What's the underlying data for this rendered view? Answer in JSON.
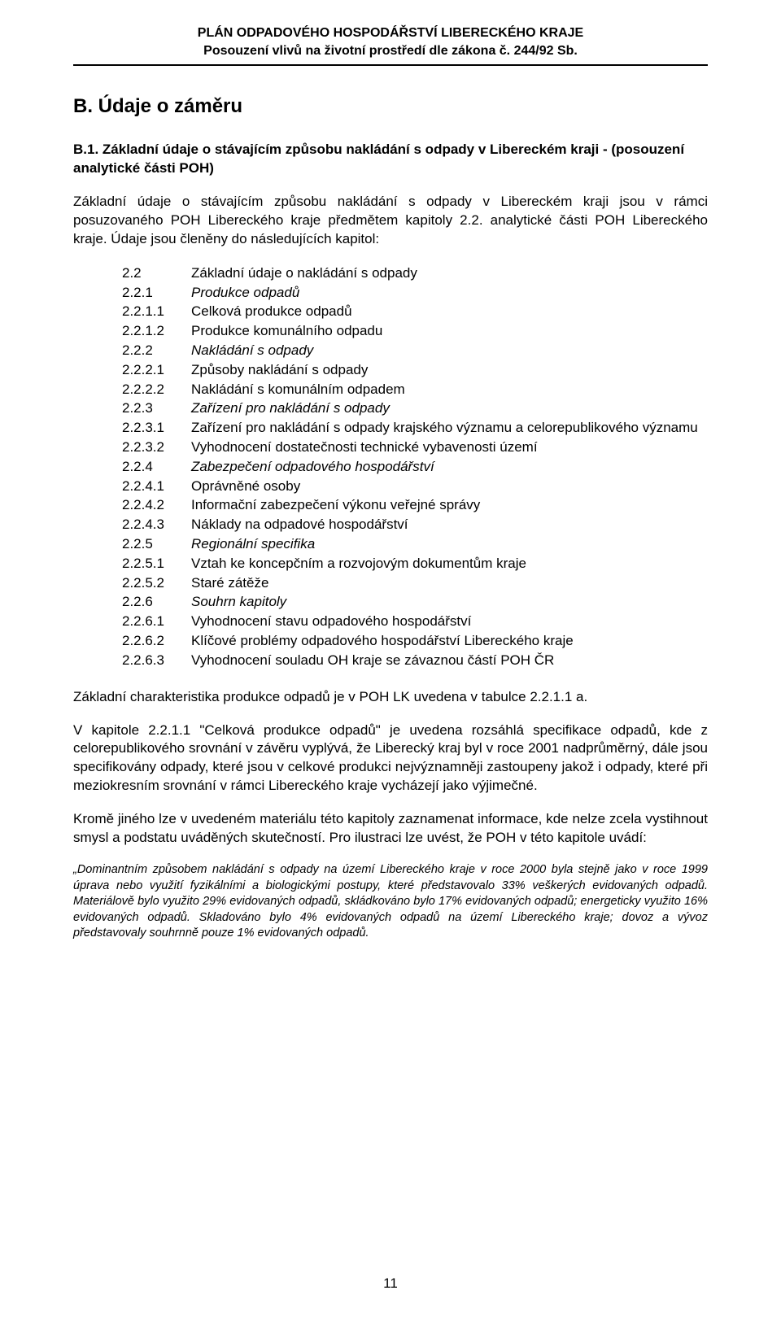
{
  "header": {
    "line1": "PLÁN ODPADOVÉHO HOSPODÁŘSTVÍ LIBERECKÉHO KRAJE",
    "line2": "Posouzení vlivů na životní prostředí dle zákona č. 244/92 Sb."
  },
  "section_title": "B. Údaje o záměru",
  "subsection_title": "B.1. Základní údaje o stávajícím způsobu nakládání s odpady v Libereckém kraji - (posouzení analytické části POH)",
  "intro_para": "Základní údaje o stávajícím způsobu nakládání s odpady v Libereckém kraji jsou v rámci posuzovaného POH Libereckého kraje předmětem kapitoly 2.2. analytické části POH Libereckého kraje. Údaje jsou členěny do následujících kapitol:",
  "toc": [
    {
      "num": "2.2",
      "label": "Základní údaje o nakládání s odpady",
      "italic": false
    },
    {
      "num": "2.2.1",
      "label": "Produkce odpadů",
      "italic": true
    },
    {
      "num": "2.2.1.1",
      "label": "Celková produkce odpadů",
      "italic": false
    },
    {
      "num": "2.2.1.2",
      "label": "Produkce komunálního odpadu",
      "italic": false
    },
    {
      "num": "2.2.2",
      "label": "Nakládání s odpady",
      "italic": true
    },
    {
      "num": "2.2.2.1",
      "label": "Způsoby nakládání s odpady",
      "italic": false
    },
    {
      "num": "2.2.2.2",
      "label": "Nakládání s komunálním odpadem",
      "italic": false
    },
    {
      "num": "2.2.3",
      "label": "Zařízení pro nakládání s odpady",
      "italic": true
    },
    {
      "num": "2.2.3.1",
      "label": "Zařízení pro nakládání s odpady krajského významu a celorepublikového významu",
      "italic": false
    },
    {
      "num": "2.2.3.2",
      "label": "Vyhodnocení dostatečnosti technické vybavenosti území",
      "italic": false
    },
    {
      "num": "2.2.4",
      "label": "Zabezpečení odpadového hospodářství",
      "italic": true
    },
    {
      "num": "2.2.4.1",
      "label": "Oprávněné osoby",
      "italic": false
    },
    {
      "num": "2.2.4.2",
      "label": "Informační zabezpečení výkonu veřejné správy",
      "italic": false
    },
    {
      "num": "2.2.4.3",
      "label": "Náklady na odpadové hospodářství",
      "italic": false
    },
    {
      "num": "2.2.5",
      "label": "Regionální specifika",
      "italic": true
    },
    {
      "num": "2.2.5.1",
      "label": "Vztah ke koncepčním a rozvojovým dokumentům kraje",
      "italic": false
    },
    {
      "num": "2.2.5.2",
      "label": "Staré zátěže",
      "italic": false
    },
    {
      "num": "2.2.6",
      "label": "Souhrn kapitoly",
      "italic": true
    },
    {
      "num": "2.2.6.1",
      "label": "Vyhodnocení stavu odpadového hospodářství",
      "italic": false
    },
    {
      "num": "2.2.6.2",
      "label": "Klíčové problémy odpadového hospodářství Libereckého kraje",
      "italic": false
    },
    {
      "num": "2.2.6.3",
      "label": "Vyhodnocení souladu OH kraje se závaznou částí  POH ČR",
      "italic": false
    }
  ],
  "para_after_toc": "Základní charakteristika  produkce odpadů je v POH LK uvedena v tabulce 2.2.1.1 a.",
  "para_chapter": "V kapitole 2.2.1.1 \"Celková produkce odpadů\" je uvedena rozsáhlá specifikace odpadů, kde z celorepublikového srovnání v závěru vyplývá, že  Liberecký kraj byl v roce 2001 nadprůměrný, dále jsou specifikovány odpady, které jsou v celkové produkci nejvýznamněji zastoupeny jakož i odpady, které při meziokresním srovnání v rámci Libereckého kraje vycházejí jako výjimečné.",
  "para_krome": "Kromě jiného lze v uvedeném materiálu této kapitoly zaznamenat informace, kde nelze zcela vystihnout smysl a podstatu uváděných skutečností. Pro ilustraci lze uvést, že POH v této kapitole uvádí:",
  "quote": "„Dominantním způsobem nakládání s odpady na území Libereckého kraje v roce 2000 byla stejně jako v roce 1999 úprava nebo využití fyzikálními a biologickými postupy, které představovalo 33% veškerých evidovaných odpadů. Materiálově bylo využito 29% evidovaných odpadů, skládkováno bylo 17% evidovaných odpadů; energeticky využito 16% evidovaných odpadů. Skladováno bylo 4% evidovaných odpadů na území Libereckého kraje; dovoz a vývoz představovaly souhrnně pouze 1% evidovaných odpadů.",
  "page_number": "11"
}
